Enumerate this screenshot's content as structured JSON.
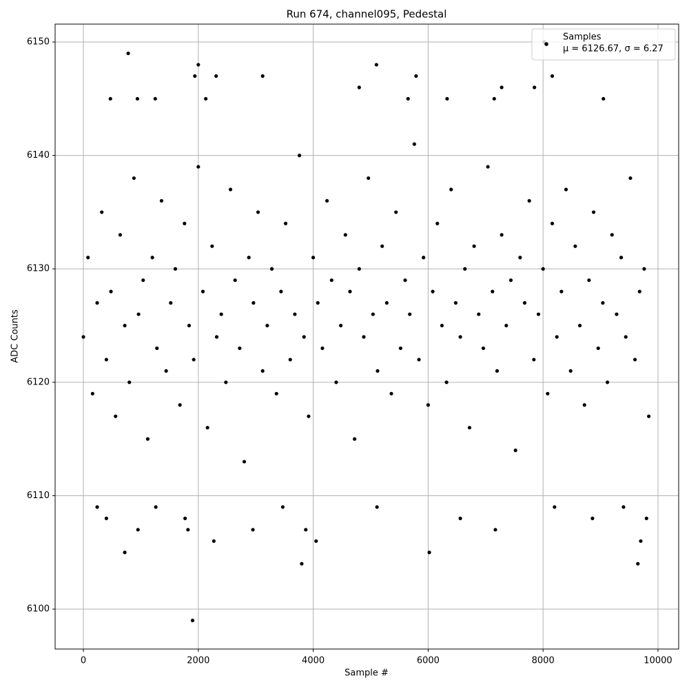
{
  "chart_data": {
    "type": "scatter",
    "title": "Run 674, channel095, Pedestal",
    "x_label": "Sample #",
    "y_label": "ADC Counts",
    "annotation": "μ = 6126.67, σ = 6.27",
    "legend": "upper right",
    "grid": true,
    "xlim": [
      -492,
      10360
    ],
    "xticks": [
      0,
      2000,
      4000,
      6000,
      8000,
      10000
    ],
    "ylim": [
      6096.48,
      6151.58
    ],
    "yticks": [
      6100,
      6110,
      6120,
      6130,
      6140,
      6150
    ],
    "series": [
      {
        "name": "Samples",
        "color": "#000000",
        "x": [
          0,
          80,
          160,
          240,
          320,
          400,
          480,
          560,
          640,
          720,
          800,
          880,
          960,
          1040,
          1120,
          1200,
          1280,
          1360,
          1440,
          1520,
          1600,
          1680,
          1760,
          1840,
          1920,
          2000,
          2080,
          2160,
          2240,
          2320,
          2400,
          2480,
          2560,
          2640,
          2720,
          2800,
          2880,
          2960,
          3040,
          3120,
          3200,
          3280,
          3360,
          3440,
          3520,
          3600,
          3680,
          3760,
          3840,
          3920,
          4000,
          4080,
          4160,
          4240,
          4320,
          4400,
          4480,
          4560,
          4640,
          4720,
          4800,
          4880,
          4960,
          5040,
          5120,
          5200,
          5280,
          5360,
          5440,
          5520,
          5600,
          5680,
          5760,
          5840,
          5920,
          6000,
          6080,
          6160,
          6240,
          6320,
          6400,
          6480,
          6560,
          6640,
          6720,
          6800,
          6880,
          6960,
          7040,
          7120,
          7200,
          7280,
          7360,
          7440,
          7520,
          7600,
          7680,
          7760,
          7840,
          7920,
          8000,
          8080,
          8160,
          8240,
          8320,
          8400,
          8480,
          8560,
          8640,
          8720,
          8800,
          8880,
          8960,
          9040,
          9120,
          9200,
          9280,
          9360,
          9440,
          9520,
          9600,
          9680,
          9760,
          9840,
          1900,
          780,
          2000,
          5100,
          3800,
          9650,
          720,
          6020,
          2270,
          4050,
          9700,
          950,
          1820,
          2950,
          3870,
          7170,
          1770,
          6560,
          8860,
          9800,
          400,
          240,
          1260,
          3470,
          5110,
          8200,
          9400,
          8020,
          7280,
          7850,
          4800,
          1940,
          2310,
          3120,
          5790,
          8160,
          470,
          940,
          1250,
          2130,
          5650,
          6330,
          7150,
          9050
        ],
        "values": [
          6124,
          6131,
          6119,
          6127,
          6135,
          6122,
          6128,
          6117,
          6133,
          6125,
          6120,
          6138,
          6126,
          6129,
          6115,
          6131,
          6123,
          6136,
          6121,
          6127,
          6130,
          6118,
          6134,
          6125,
          6122,
          6139,
          6128,
          6116,
          6132,
          6124,
          6126,
          6120,
          6137,
          6129,
          6123,
          6113,
          6131,
          6127,
          6135,
          6121,
          6125,
          6130,
          6119,
          6128,
          6134,
          6122,
          6126,
          6140,
          6124,
          6117,
          6131,
          6127,
          6123,
          6136,
          6129,
          6120,
          6125,
          6133,
          6128,
          6115,
          6130,
          6124,
          6138,
          6126,
          6121,
          6132,
          6127,
          6119,
          6135,
          6123,
          6129,
          6126,
          6141,
          6122,
          6131,
          6118,
          6128,
          6134,
          6125,
          6120,
          6137,
          6127,
          6124,
          6130,
          6116,
          6132,
          6126,
          6123,
          6139,
          6128,
          6121,
          6133,
          6125,
          6129,
          6114,
          6131,
          6127,
          6136,
          6122,
          6126,
          6130,
          6119,
          6134,
          6124,
          6128,
          6137,
          6121,
          6132,
          6125,
          6118,
          6129,
          6135,
          6123,
          6127,
          6120,
          6133,
          6126,
          6131,
          6124,
          6138,
          6122,
          6128,
          6130,
          6117,
          6099,
          6149,
          6148,
          6148,
          6104,
          6104,
          6105,
          6105,
          6106,
          6106,
          6106,
          6107,
          6107,
          6107,
          6107,
          6107,
          6108,
          6108,
          6108,
          6108,
          6108,
          6109,
          6109,
          6109,
          6109,
          6109,
          6109,
          6150,
          6146,
          6146,
          6146,
          6147,
          6147,
          6147,
          6147,
          6147,
          6145,
          6145,
          6145,
          6145,
          6145,
          6145,
          6145,
          6145
        ]
      }
    ]
  }
}
